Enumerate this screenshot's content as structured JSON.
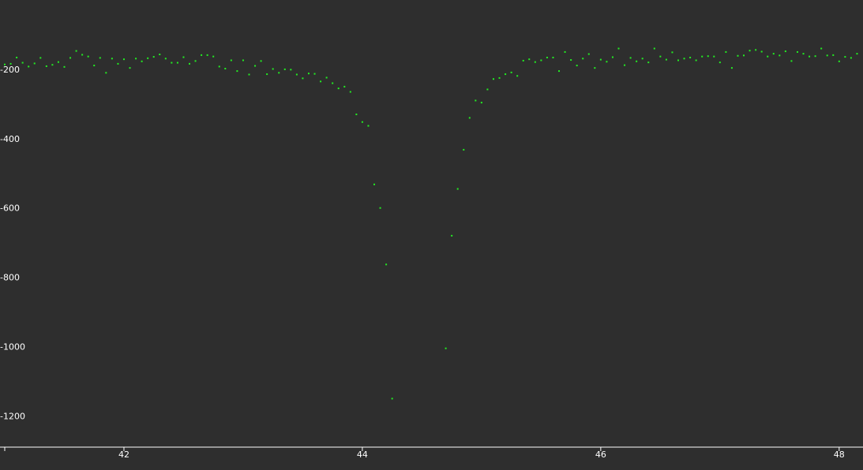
{
  "chart_data": {
    "type": "scatter",
    "title": "",
    "xlabel": "",
    "ylabel": "",
    "xlim": [
      41.0,
      48.2
    ],
    "ylim": [
      -1290,
      0
    ],
    "grid": false,
    "legend": "none",
    "colors": {
      "background": "#2e2e2e",
      "axis": "#ffffff",
      "point": "#22ee22"
    },
    "x_ticks": [
      {
        "value": 42,
        "label": "42"
      },
      {
        "value": 44,
        "label": "44"
      },
      {
        "value": 46,
        "label": "46"
      },
      {
        "value": 48,
        "label": "48"
      }
    ],
    "y_ticks": [
      {
        "value": -1200,
        "label": "-1200"
      },
      {
        "value": -1000,
        "label": "-1000"
      },
      {
        "value": -800,
        "label": "-800"
      },
      {
        "value": -600,
        "label": "-600"
      },
      {
        "value": -400,
        "label": "-400"
      },
      {
        "value": -200,
        "label": "-200"
      }
    ],
    "series": [
      {
        "name": "points",
        "points": [
          [
            41.0,
            -186
          ],
          [
            41.05,
            -184
          ],
          [
            41.1,
            -166
          ],
          [
            41.15,
            -181
          ],
          [
            41.2,
            -192
          ],
          [
            41.25,
            -183
          ],
          [
            41.3,
            -167
          ],
          [
            41.35,
            -191
          ],
          [
            41.4,
            -187
          ],
          [
            41.45,
            -179
          ],
          [
            41.5,
            -193
          ],
          [
            41.55,
            -167
          ],
          [
            41.6,
            -147
          ],
          [
            41.65,
            -158
          ],
          [
            41.7,
            -163
          ],
          [
            41.75,
            -189
          ],
          [
            41.8,
            -167
          ],
          [
            41.85,
            -210
          ],
          [
            41.9,
            -169
          ],
          [
            41.95,
            -184
          ],
          [
            42.0,
            -171
          ],
          [
            42.05,
            -196
          ],
          [
            42.1,
            -169
          ],
          [
            42.15,
            -177
          ],
          [
            42.2,
            -168
          ],
          [
            42.25,
            -164
          ],
          [
            42.3,
            -157
          ],
          [
            42.35,
            -169
          ],
          [
            42.4,
            -181
          ],
          [
            42.45,
            -181
          ],
          [
            42.5,
            -165
          ],
          [
            42.55,
            -184
          ],
          [
            42.6,
            -176
          ],
          [
            42.65,
            -159
          ],
          [
            42.7,
            -159
          ],
          [
            42.75,
            -163
          ],
          [
            42.8,
            -192
          ],
          [
            42.85,
            -198
          ],
          [
            42.9,
            -174
          ],
          [
            42.95,
            -205
          ],
          [
            43.0,
            -174
          ],
          [
            43.05,
            -215
          ],
          [
            43.1,
            -190
          ],
          [
            43.15,
            -176
          ],
          [
            43.2,
            -214
          ],
          [
            43.25,
            -199
          ],
          [
            43.3,
            -210
          ],
          [
            43.35,
            -200
          ],
          [
            43.4,
            -201
          ],
          [
            43.45,
            -215
          ],
          [
            43.5,
            -226
          ],
          [
            43.55,
            -212
          ],
          [
            43.6,
            -213
          ],
          [
            43.65,
            -235
          ],
          [
            43.7,
            -224
          ],
          [
            43.75,
            -240
          ],
          [
            43.8,
            -255
          ],
          [
            43.85,
            -250
          ],
          [
            43.9,
            -265
          ],
          [
            43.95,
            -330
          ],
          [
            44.0,
            -352
          ],
          [
            44.05,
            -363
          ],
          [
            44.1,
            -532
          ],
          [
            44.15,
            -600
          ],
          [
            44.2,
            -763
          ],
          [
            44.25,
            -1150
          ],
          [
            44.7,
            -1005
          ],
          [
            44.75,
            -680
          ],
          [
            44.8,
            -545
          ],
          [
            44.85,
            -432
          ],
          [
            44.9,
            -340
          ],
          [
            44.95,
            -290
          ],
          [
            45.0,
            -296
          ],
          [
            45.05,
            -258
          ],
          [
            45.1,
            -228
          ],
          [
            45.15,
            -225
          ],
          [
            45.2,
            -214
          ],
          [
            45.25,
            -209
          ],
          [
            45.3,
            -219
          ],
          [
            45.35,
            -175
          ],
          [
            45.4,
            -171
          ],
          [
            45.45,
            -179
          ],
          [
            45.5,
            -174
          ],
          [
            45.55,
            -166
          ],
          [
            45.6,
            -166
          ],
          [
            45.65,
            -205
          ],
          [
            45.7,
            -150
          ],
          [
            45.75,
            -173
          ],
          [
            45.8,
            -189
          ],
          [
            45.85,
            -169
          ],
          [
            45.9,
            -156
          ],
          [
            45.95,
            -196
          ],
          [
            46.0,
            -172
          ],
          [
            46.05,
            -178
          ],
          [
            46.1,
            -165
          ],
          [
            46.15,
            -140
          ],
          [
            46.2,
            -188
          ],
          [
            46.25,
            -167
          ],
          [
            46.3,
            -177
          ],
          [
            46.35,
            -169
          ],
          [
            46.4,
            -180
          ],
          [
            46.45,
            -140
          ],
          [
            46.5,
            -163
          ],
          [
            46.55,
            -172
          ],
          [
            46.6,
            -151
          ],
          [
            46.65,
            -174
          ],
          [
            46.7,
            -169
          ],
          [
            46.75,
            -166
          ],
          [
            46.8,
            -174
          ],
          [
            46.85,
            -163
          ],
          [
            46.9,
            -162
          ],
          [
            46.95,
            -163
          ],
          [
            47.0,
            -180
          ],
          [
            47.05,
            -150
          ],
          [
            47.1,
            -196
          ],
          [
            47.15,
            -161
          ],
          [
            47.2,
            -160
          ],
          [
            47.25,
            -146
          ],
          [
            47.3,
            -144
          ],
          [
            47.35,
            -149
          ],
          [
            47.4,
            -163
          ],
          [
            47.45,
            -155
          ],
          [
            47.5,
            -160
          ],
          [
            47.55,
            -148
          ],
          [
            47.6,
            -176
          ],
          [
            47.65,
            -150
          ],
          [
            47.7,
            -155
          ],
          [
            47.75,
            -163
          ],
          [
            47.8,
            -162
          ],
          [
            47.85,
            -140
          ],
          [
            47.9,
            -160
          ],
          [
            47.95,
            -159
          ],
          [
            48.0,
            -177
          ],
          [
            48.05,
            -164
          ],
          [
            48.1,
            -167
          ],
          [
            48.15,
            -155
          ]
        ]
      }
    ]
  }
}
